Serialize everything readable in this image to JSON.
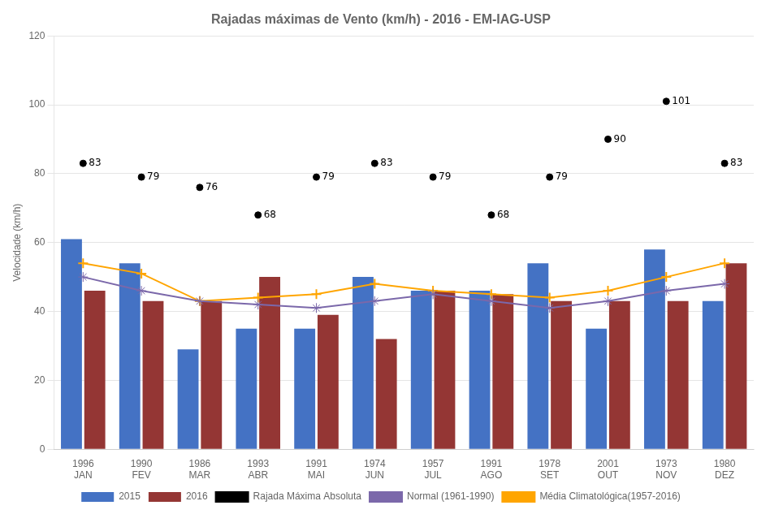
{
  "chart_data": {
    "type": "bar",
    "title": "Rajadas máximas de Vento (km/h) - 2016 - EM-IAG-USP",
    "ylabel": "Velocidade (km/h)",
    "categories": [
      [
        "1996",
        "JAN"
      ],
      [
        "1990",
        "FEV"
      ],
      [
        "1986",
        "MAR"
      ],
      [
        "1993",
        "ABR"
      ],
      [
        "1991",
        "MAI"
      ],
      [
        "1974",
        "JUN"
      ],
      [
        "1957",
        "JUL"
      ],
      [
        "1991",
        "AGO"
      ],
      [
        "1978",
        "SET"
      ],
      [
        "2001",
        "OUT"
      ],
      [
        "1973",
        "NOV"
      ],
      [
        "1980",
        "DEZ"
      ]
    ],
    "series": [
      {
        "name": "2015",
        "type": "bar",
        "color": "#4472C4",
        "values": [
          61,
          54,
          29,
          35,
          35,
          50,
          46,
          46,
          54,
          35,
          58,
          43
        ]
      },
      {
        "name": "2016",
        "type": "bar",
        "color": "#943634",
        "values": [
          46,
          43,
          43,
          50,
          39,
          32,
          46,
          45,
          43,
          43,
          43,
          54
        ]
      },
      {
        "name": "Rajada Máxima Absoluta",
        "type": "scatter",
        "color": "#000000",
        "marker": "circle",
        "data_labels": true,
        "values": [
          83,
          79,
          76,
          68,
          79,
          83,
          79,
          68,
          79,
          90,
          101,
          83
        ]
      },
      {
        "name": "Normal (1961-1990)",
        "type": "line",
        "color": "#7B68AA",
        "marker": "star",
        "values": [
          50,
          46,
          43,
          42,
          41,
          43,
          45,
          43,
          41,
          43,
          46,
          48
        ]
      },
      {
        "name": "Média Climatológica(1957-2016)",
        "type": "line",
        "color": "#FFA500",
        "marker": "plus",
        "values": [
          54,
          51,
          43,
          44,
          45,
          48,
          46,
          45,
          44,
          46,
          50,
          54
        ]
      }
    ],
    "ylim": [
      0,
      120
    ],
    "yticks": [
      0,
      20,
      40,
      60,
      80,
      100,
      120
    ],
    "grid": "y",
    "legend": "bottom"
  }
}
